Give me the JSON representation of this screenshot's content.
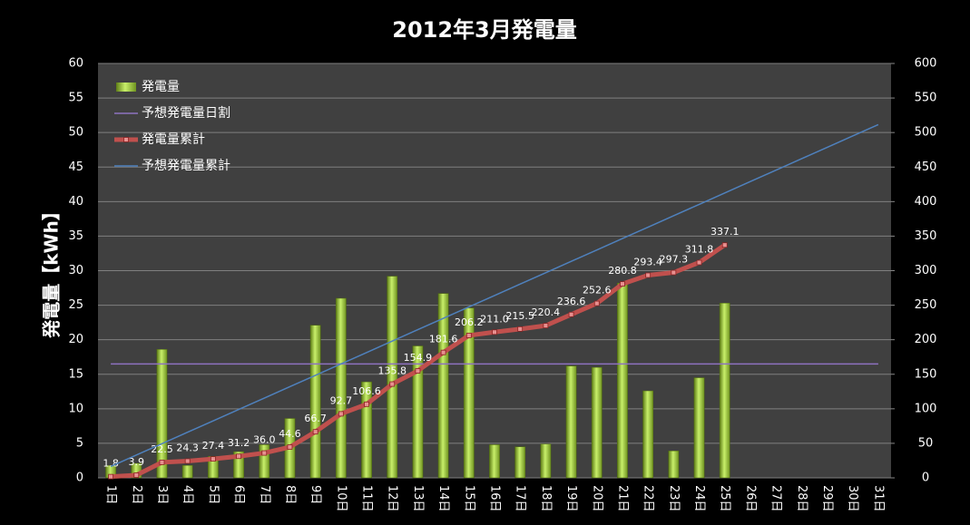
{
  "chart_data": {
    "type": "combo",
    "title": "2012年3月発電量",
    "y_label": "発電量【kWh】",
    "categories": [
      "1日",
      "2日",
      "3日",
      "4日",
      "5日",
      "6日",
      "7日",
      "8日",
      "9日",
      "10日",
      "11日",
      "12日",
      "13日",
      "14日",
      "15日",
      "16日",
      "17日",
      "18日",
      "19日",
      "20日",
      "21日",
      "22日",
      "23日",
      "24日",
      "25日",
      "26日",
      "27日",
      "28日",
      "29日",
      "30日",
      "31日"
    ],
    "ylim": [
      0,
      60
    ],
    "yticks": [
      0,
      5,
      10,
      15,
      20,
      25,
      30,
      35,
      40,
      45,
      50,
      55,
      60
    ],
    "y2lim": [
      0,
      600
    ],
    "y2ticks": [
      0,
      50,
      100,
      150,
      200,
      250,
      300,
      350,
      400,
      450,
      500,
      550,
      600
    ],
    "grid": true,
    "legend": "upper left",
    "series": [
      {
        "name": "発電量",
        "type": "bar",
        "color": "#9acd32",
        "values": [
          1.8,
          2.1,
          18.6,
          1.8,
          3.1,
          3.8,
          4.8,
          8.6,
          22.1,
          26.0,
          13.9,
          29.2,
          19.1,
          26.7,
          24.6,
          4.8,
          4.5,
          4.9,
          16.2,
          16.0,
          28.2,
          12.6,
          3.9,
          14.5,
          25.3,
          null,
          null,
          null,
          null,
          null,
          null
        ]
      },
      {
        "name": "予想発電量日割",
        "type": "line",
        "color": "#8e72c0",
        "values": [
          16.5,
          16.5,
          16.5,
          16.5,
          16.5,
          16.5,
          16.5,
          16.5,
          16.5,
          16.5,
          16.5,
          16.5,
          16.5,
          16.5,
          16.5,
          16.5,
          16.5,
          16.5,
          16.5,
          16.5,
          16.5,
          16.5,
          16.5,
          16.5,
          16.5,
          16.5,
          16.5,
          16.5,
          16.5,
          16.5,
          16.5
        ]
      },
      {
        "name": "発電量累計",
        "type": "line",
        "axis": "y2",
        "color": "#c0504d",
        "markers": true,
        "values": [
          1.8,
          3.9,
          22.5,
          24.3,
          27.4,
          31.2,
          36.0,
          44.6,
          66.7,
          92.7,
          106.6,
          135.8,
          154.9,
          181.6,
          206.2,
          211.0,
          215.5,
          220.4,
          236.6,
          252.6,
          280.8,
          293.4,
          297.3,
          311.8,
          337.1,
          null,
          null,
          null,
          null,
          null,
          null
        ],
        "value_labels": [
          "1.8",
          "3.9",
          "22.5",
          "24.3",
          "27.4",
          "31.2",
          "36.0",
          "44.6",
          "66.7",
          "92.7",
          "106.6",
          "135.8",
          "154.9",
          "181.6",
          "206.2",
          "211.0",
          "215.5",
          "220.4",
          "236.6",
          "252.6",
          "280.8",
          "293.4",
          "297.3",
          "311.8",
          "337.1",
          null,
          null,
          null,
          null,
          null,
          null
        ]
      },
      {
        "name": "予想発電量累計",
        "type": "line",
        "axis": "y2",
        "color": "#4f81bd",
        "values": [
          16.5,
          33,
          49.5,
          66,
          82.5,
          99,
          115.5,
          132,
          148.5,
          165,
          181.5,
          198,
          214.5,
          231,
          247.5,
          264,
          280.5,
          297,
          313.5,
          330,
          346.5,
          363,
          379.5,
          396,
          412.5,
          429,
          445.5,
          462,
          478.5,
          495,
          511.5
        ]
      }
    ]
  }
}
